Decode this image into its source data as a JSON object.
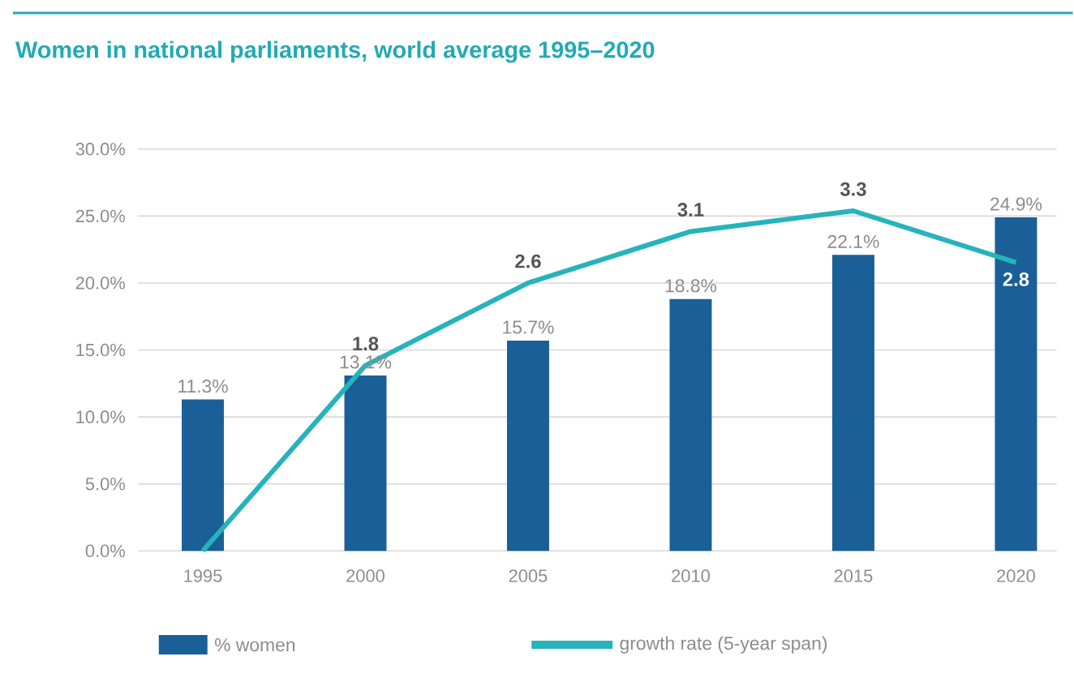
{
  "chart_data": {
    "type": "bar",
    "title": "Women in national parliaments, world average 1995–2020",
    "categories": [
      "1995",
      "2000",
      "2005",
      "2010",
      "2015",
      "2020"
    ],
    "series": [
      {
        "name": "% women",
        "color": "#1a5f97",
        "values": [
          11.3,
          13.1,
          15.7,
          18.8,
          22.1,
          24.9
        ],
        "value_labels": [
          "11.3%",
          "13.1%",
          "15.7%",
          "18.8%",
          "22.1%",
          "24.9%"
        ]
      },
      {
        "name": "growth rate (5-year span)",
        "type": "line",
        "axis": "y2",
        "color": "#26b3bb",
        "values": [
          0,
          1.8,
          2.6,
          3.1,
          3.3,
          2.8
        ],
        "value_labels": [
          null,
          "1.8",
          "2.6",
          "3.1",
          "3.3",
          "2.8"
        ]
      }
    ],
    "ylim": [
      0,
      30
    ],
    "yticks": [
      {
        "value": 0,
        "label": "0.0%"
      },
      {
        "value": 5,
        "label": "5.0%"
      },
      {
        "value": 10,
        "label": "10.0%"
      },
      {
        "value": 15,
        "label": "15.0%"
      },
      {
        "value": 20,
        "label": "20.0%"
      },
      {
        "value": 25,
        "label": "25.0%"
      },
      {
        "value": 30,
        "label": "30.0%"
      }
    ],
    "y2lim": [
      0,
      3.9
    ],
    "grid": "y",
    "legend": "bottom",
    "marker": "none"
  }
}
